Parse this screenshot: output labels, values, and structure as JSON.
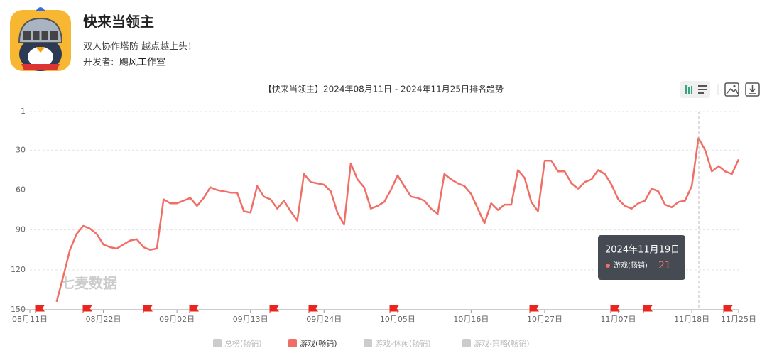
{
  "app": {
    "name": "快来当领主",
    "slogan": "双人协作塔防 越点越上头！",
    "developer_label": "开发者:",
    "developer": "飓风工作室"
  },
  "watermark": "七麦数据",
  "chart_data": {
    "type": "line",
    "title": "【快来当领主】2024年08月11日 - 2024年11月25日排名趋势",
    "categories": [
      "08月11日",
      null,
      null,
      null,
      null,
      null,
      null,
      null,
      null,
      null,
      null,
      "08月22日",
      null,
      null,
      null,
      null,
      null,
      null,
      null,
      null,
      null,
      null,
      "09月02日",
      null,
      null,
      null,
      null,
      null,
      null,
      null,
      null,
      null,
      null,
      "09月13日",
      null,
      null,
      null,
      null,
      null,
      null,
      null,
      null,
      null,
      null,
      "09月24日",
      null,
      null,
      null,
      null,
      null,
      null,
      null,
      null,
      null,
      null,
      "10月05日",
      null,
      null,
      null,
      null,
      null,
      null,
      null,
      null,
      null,
      null,
      "10月16日",
      null,
      null,
      null,
      null,
      null,
      null,
      null,
      null,
      null,
      null,
      "10月27日",
      null,
      null,
      null,
      null,
      null,
      null,
      null,
      null,
      null,
      null,
      "11月07日",
      null,
      null,
      null,
      null,
      null,
      null,
      null,
      null,
      null,
      null,
      "11月18日",
      null,
      null,
      null,
      null,
      null,
      null,
      "11月25日"
    ],
    "series": [
      {
        "name": "总榜(畅销)",
        "color": "#cccccc",
        "hidden": true
      },
      {
        "name": "游戏(畅销)",
        "color": "#f06e66",
        "values": [
          null,
          null,
          null,
          null,
          144,
          125,
          105,
          93,
          87,
          89,
          93,
          101,
          103,
          104,
          101,
          98,
          97,
          103,
          105,
          104,
          67,
          70,
          70,
          68,
          66,
          72,
          66,
          58,
          60,
          61,
          62,
          62,
          76,
          77,
          57,
          65,
          67,
          74,
          68,
          76,
          83,
          48,
          54,
          55,
          56,
          61,
          77,
          86,
          40,
          52,
          58,
          74,
          72,
          69,
          60,
          49,
          57,
          65,
          66,
          68,
          74,
          78,
          48,
          52,
          55,
          57,
          63,
          74,
          85,
          70,
          75,
          71,
          71,
          45,
          51,
          69,
          76,
          38,
          38,
          46,
          46,
          55,
          59,
          54,
          52,
          45,
          48,
          56,
          67,
          72,
          74,
          70,
          68,
          59,
          61,
          71,
          73,
          69,
          68,
          57,
          21,
          30,
          46,
          42,
          46,
          48,
          37
        ]
      },
      {
        "name": "游戏-休闲(畅销)",
        "color": "#cccccc",
        "hidden": true
      },
      {
        "name": "游戏-策略(畅销)",
        "color": "#cccccc",
        "hidden": true
      }
    ],
    "ylim": [
      1,
      150
    ],
    "y_inverted": true,
    "yticks": [
      1,
      30,
      60,
      90,
      120,
      150
    ],
    "grid": true,
    "tooltip": {
      "title": "2024年11月19日"
    }
  }
}
